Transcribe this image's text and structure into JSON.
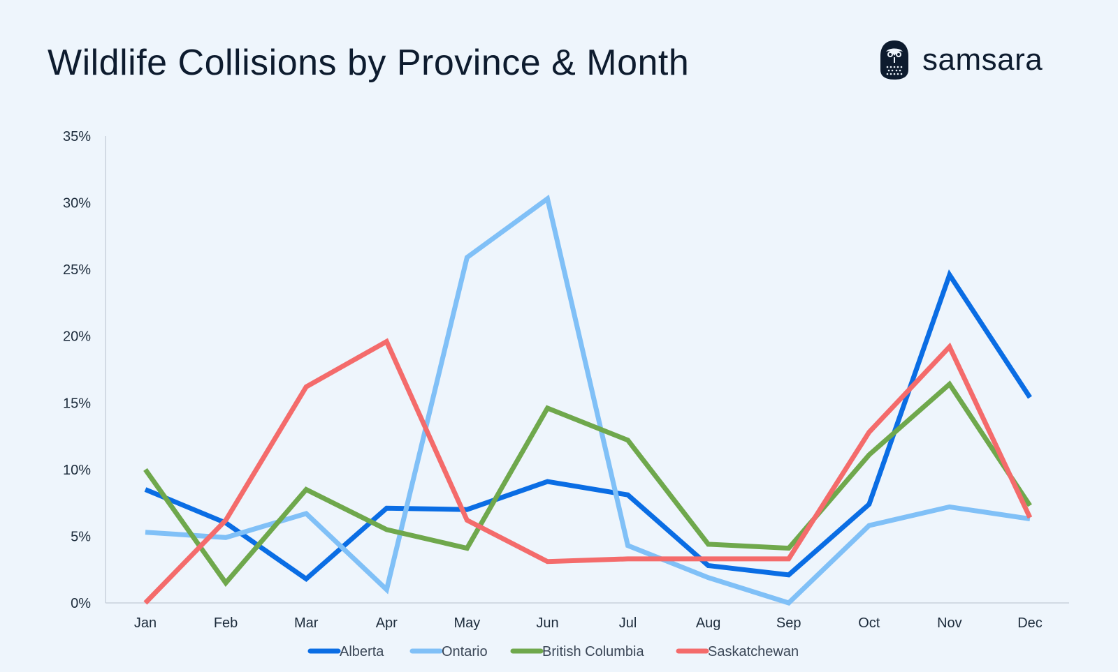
{
  "header": {
    "title": "Wildlife Collisions by Province & Month",
    "brand_name": "samsara",
    "logo_icon": "owl-logo-icon"
  },
  "colors": {
    "background": "#eef5fc",
    "axis": "#c9d2dc",
    "text": "#0d1b2e"
  },
  "chart_data": {
    "type": "line",
    "title": "Wildlife Collisions by Province & Month",
    "xlabel": "",
    "ylabel": "",
    "categories": [
      "Jan",
      "Feb",
      "Mar",
      "Apr",
      "May",
      "Jun",
      "Jul",
      "Aug",
      "Sep",
      "Oct",
      "Nov",
      "Dec"
    ],
    "y_ticks": [
      "0%",
      "5%",
      "10%",
      "15%",
      "20%",
      "25%",
      "30%",
      "35%"
    ],
    "ylim": [
      0,
      35
    ],
    "y_unit": "%",
    "grid": false,
    "legend_position": "bottom",
    "series": [
      {
        "name": "Alberta",
        "color": "#0a6de4",
        "values": [
          8.5,
          6.0,
          1.8,
          7.1,
          7.0,
          9.1,
          8.1,
          2.8,
          2.1,
          7.4,
          24.6,
          15.4
        ]
      },
      {
        "name": "Ontario",
        "color": "#80c0f7",
        "values": [
          5.3,
          4.9,
          6.7,
          1.0,
          25.9,
          30.3,
          4.3,
          1.9,
          0.0,
          5.8,
          7.2,
          6.3
        ]
      },
      {
        "name": "British Columbia",
        "color": "#6fa84c",
        "values": [
          10.0,
          1.5,
          8.5,
          5.5,
          4.1,
          14.6,
          12.2,
          4.4,
          4.1,
          11.1,
          16.4,
          7.3
        ]
      },
      {
        "name": "Saskatchewan",
        "color": "#f46b6b",
        "values": [
          0.0,
          6.2,
          16.2,
          19.6,
          6.2,
          3.1,
          3.3,
          3.3,
          3.3,
          12.8,
          19.2,
          6.4
        ]
      }
    ]
  }
}
